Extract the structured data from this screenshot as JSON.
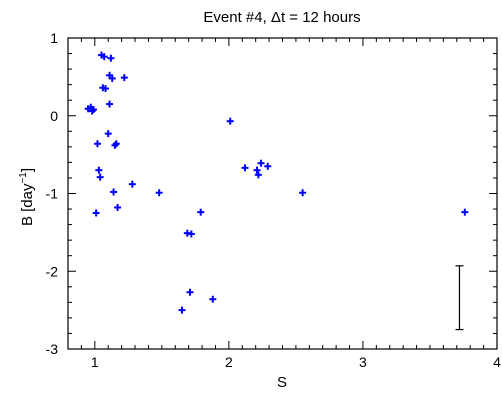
{
  "chart_data": {
    "type": "scatter",
    "title": "Event #4, Δt = 12 hours",
    "xlabel": "S",
    "ylabel": "B [day",
    "ylabel_superscript": "−1",
    "ylabel_close": "]",
    "xlim": [
      0.8,
      4
    ],
    "ylim": [
      -3,
      1
    ],
    "xticks": [
      1,
      2,
      3,
      4
    ],
    "xtick_labels": [
      "1",
      "2",
      "3",
      "4"
    ],
    "yticks": [
      1,
      0,
      -1,
      -2,
      -3
    ],
    "ytick_labels": [
      "1",
      "0",
      "-1",
      "-2",
      "-3"
    ],
    "grid": false,
    "marker": "plus",
    "colors": {
      "points": "#0000ff",
      "axes": "#000000",
      "errorbar": "#000000"
    },
    "points": [
      {
        "x": 0.95,
        "y": 0.09
      },
      {
        "x": 0.97,
        "y": 0.11
      },
      {
        "x": 0.98,
        "y": 0.06
      },
      {
        "x": 0.99,
        "y": 0.08
      },
      {
        "x": 1.01,
        "y": -1.25
      },
      {
        "x": 1.02,
        "y": -0.36
      },
      {
        "x": 1.03,
        "y": -0.7
      },
      {
        "x": 1.04,
        "y": -0.79
      },
      {
        "x": 1.05,
        "y": 0.78
      },
      {
        "x": 1.06,
        "y": 0.36
      },
      {
        "x": 1.07,
        "y": 0.76
      },
      {
        "x": 1.08,
        "y": 0.35
      },
      {
        "x": 1.1,
        "y": -0.23
      },
      {
        "x": 1.11,
        "y": 0.15
      },
      {
        "x": 1.11,
        "y": 0.52
      },
      {
        "x": 1.12,
        "y": 0.74
      },
      {
        "x": 1.13,
        "y": 0.48
      },
      {
        "x": 1.14,
        "y": -0.98
      },
      {
        "x": 1.15,
        "y": -0.38
      },
      {
        "x": 1.16,
        "y": -0.36
      },
      {
        "x": 1.17,
        "y": -1.18
      },
      {
        "x": 1.22,
        "y": 0.49
      },
      {
        "x": 1.28,
        "y": -0.88
      },
      {
        "x": 1.48,
        "y": -0.99
      },
      {
        "x": 1.65,
        "y": -2.5
      },
      {
        "x": 1.69,
        "y": -1.51
      },
      {
        "x": 1.71,
        "y": -2.27
      },
      {
        "x": 1.72,
        "y": -1.52
      },
      {
        "x": 1.79,
        "y": -1.24
      },
      {
        "x": 1.88,
        "y": -2.36
      },
      {
        "x": 2.01,
        "y": -0.07
      },
      {
        "x": 2.12,
        "y": -0.67
      },
      {
        "x": 2.21,
        "y": -0.7
      },
      {
        "x": 2.22,
        "y": -0.76
      },
      {
        "x": 2.24,
        "y": -0.61
      },
      {
        "x": 2.29,
        "y": -0.65
      },
      {
        "x": 2.55,
        "y": -0.99
      },
      {
        "x": 3.76,
        "y": -1.24
      }
    ],
    "error_bar": {
      "x": 3.72,
      "y_low": -2.75,
      "y_high": -1.93
    }
  }
}
